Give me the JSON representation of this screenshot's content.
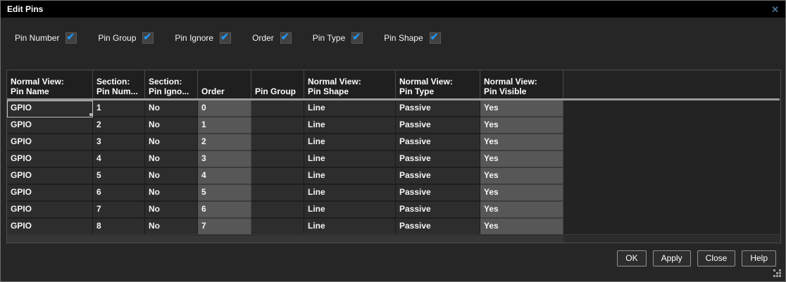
{
  "window": {
    "title": "Edit Pins",
    "close_icon": "✕"
  },
  "filters": {
    "check_glyph": "✔",
    "items": [
      {
        "label": "Pin Number",
        "checked": true
      },
      {
        "label": "Pin Group",
        "checked": true
      },
      {
        "label": "Pin Ignore",
        "checked": true
      },
      {
        "label": "Order",
        "checked": true
      },
      {
        "label": "Pin Type",
        "checked": true
      },
      {
        "label": "Pin Shape",
        "checked": true
      }
    ]
  },
  "table": {
    "columns": [
      {
        "line1": "Normal View:",
        "line2": "Pin Name"
      },
      {
        "line1": "Section:",
        "line2": "Pin Num..."
      },
      {
        "line1": "Section:",
        "line2": "Pin Igno..."
      },
      {
        "line1": "",
        "line2": "Order"
      },
      {
        "line1": "",
        "line2": "Pin Group"
      },
      {
        "line1": "Normal View:",
        "line2": "Pin Shape"
      },
      {
        "line1": "Normal View:",
        "line2": "Pin Type"
      },
      {
        "line1": "Normal View:",
        "line2": "Pin Visible"
      }
    ],
    "rows": [
      [
        "GPIO",
        "1",
        "No",
        "0",
        "",
        "Line",
        "Passive",
        "Yes"
      ],
      [
        "GPIO",
        "2",
        "No",
        "1",
        "",
        "Line",
        "Passive",
        "Yes"
      ],
      [
        "GPIO",
        "3",
        "No",
        "2",
        "",
        "Line",
        "Passive",
        "Yes"
      ],
      [
        "GPIO",
        "4",
        "No",
        "3",
        "",
        "Line",
        "Passive",
        "Yes"
      ],
      [
        "GPIO",
        "5",
        "No",
        "4",
        "",
        "Line",
        "Passive",
        "Yes"
      ],
      [
        "GPIO",
        "6",
        "No",
        "5",
        "",
        "Line",
        "Passive",
        "Yes"
      ],
      [
        "GPIO",
        "7",
        "No",
        "6",
        "",
        "Line",
        "Passive",
        "Yes"
      ],
      [
        "GPIO",
        "8",
        "No",
        "7",
        "",
        "Line",
        "Passive",
        "Yes"
      ]
    ]
  },
  "buttons": {
    "ok": "OK",
    "apply": "Apply",
    "close": "Close",
    "help": "Help"
  },
  "colors": {
    "accent_blue": "#2196f3",
    "titlebar": "#000000",
    "dialog_bg": "#262626",
    "cell_dark": "#2d2d2d",
    "cell_light": "#575757"
  }
}
